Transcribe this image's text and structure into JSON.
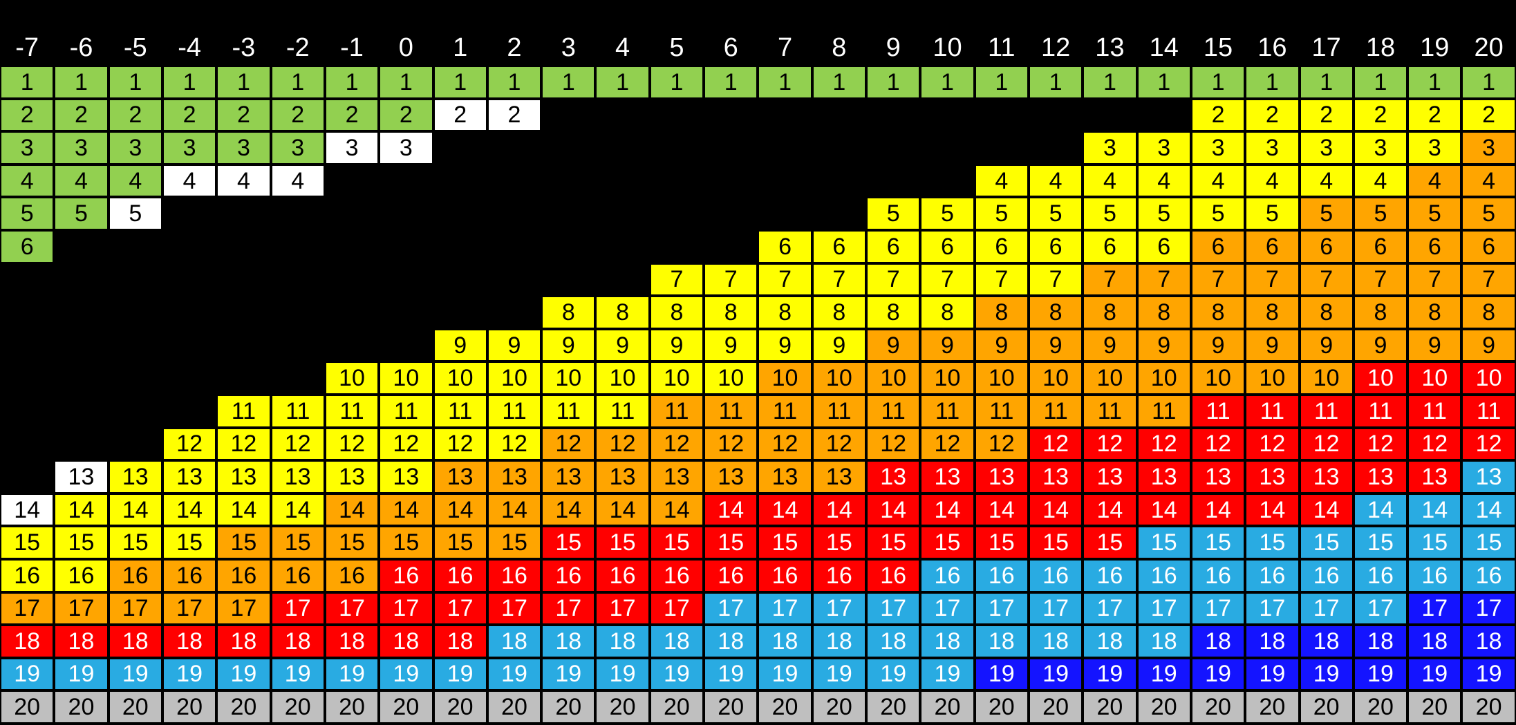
{
  "background": "#000000",
  "chart_data": {
    "type": "heatmap",
    "title": "",
    "xlabel": "",
    "ylabel": "",
    "columns": [
      "-7",
      "-6",
      "-5",
      "-4",
      "-3",
      "-2",
      "-1",
      "0",
      "1",
      "2",
      "3",
      "4",
      "5",
      "6",
      "7",
      "8",
      "9",
      "10",
      "11",
      "12",
      "13",
      "14",
      "15",
      "16",
      "17",
      "18",
      "19",
      "20"
    ],
    "row_labels": [
      "1",
      "2",
      "3",
      "4",
      "5",
      "6",
      "7",
      "8",
      "9",
      "10",
      "11",
      "12",
      "13",
      "14",
      "15",
      "16",
      "17",
      "18",
      "19",
      "20"
    ],
    "cell_value_note": "each existing cell displays its row label; '.' means no cell (black gap)",
    "matrix": [
      "GGGGGGGGGGGGGGGGGGGGGGGGGGGG",
      "GGGGGGGGWW............YYYYYY",
      "GGGGGGWW............YYYYYYYO",
      "GGGWWW............YYYYYYYYOO",
      "GGW.............YYYYYYYYOOOO",
      "G.............YYYYYYYYOOOOOO",
      "............YYYYYYYYOOOOOOOO",
      "..........YYYYYYYYOOOOOOOOOO",
      "........YYYYYYYYOOOOOOOOOOOO",
      "......YYYYYYYYOOOOOOOOOOORRR",
      "....YYYYYYYYOOOOOOOOOORRRRRR",
      "...YYYYYYYOOOOOOOOORRRRRRRRR",
      ".WYYYYYYOOOOOOOORRRRRRRRRRRC",
      "WYYYYYOOOOOOORRRRRRRRRRRRCCC",
      "YYYYOOOOOORRRRRRRRRRRCCCCCCC",
      "YYOOOOORRRRRRRRRRCCCCCCCCCCC",
      "OOOOORRRRRRRRCCCCCCCCCCCCCBB",
      "RRRRRRRRRCCCCCCCCCCCCCBBBBBB",
      "CCCCCCCCCCCCCCCCCCBBBBBBBBBB",
      "AAAAAAAAAAAAAAAAAAAAAAAAAAAA"
    ],
    "palette": {
      "G": "#92D050",
      "W": "#FFFFFF",
      "Y": "#FFFF00",
      "O": "#FFA500",
      "R": "#FF0000",
      "C": "#29ABE2",
      "B": "#1414FF",
      "A": "#BFBFBF"
    },
    "text_palette": {
      "G": "#000000",
      "W": "#000000",
      "Y": "#000000",
      "O": "#000000",
      "R": "#FFFFFF",
      "C": "#FFFFFF",
      "B": "#FFFFFF",
      "A": "#000000"
    },
    "legend_position": "none",
    "grid": true,
    "header_text_color": "#FFFFFF"
  }
}
